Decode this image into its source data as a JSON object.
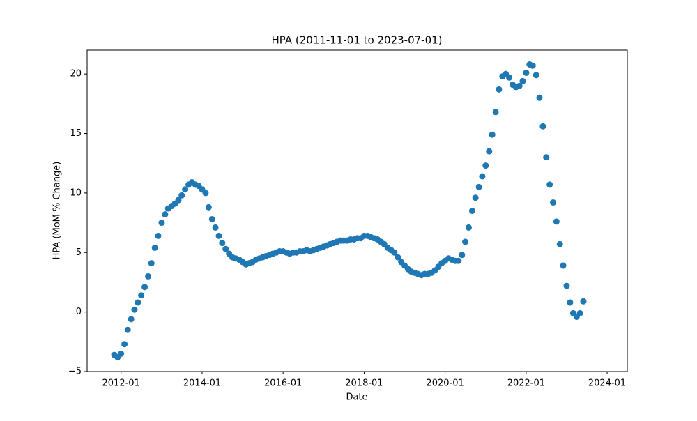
{
  "chart_data": {
    "type": "scatter",
    "title": "HPA (2011-11-01 to 2023-07-01)",
    "xlabel": "Date",
    "ylabel": "HPA (MoM % Change)",
    "color": "#1f77b4",
    "x": [
      "2011-11",
      "2011-12",
      "2012-01",
      "2012-02",
      "2012-03",
      "2012-04",
      "2012-05",
      "2012-06",
      "2012-07",
      "2012-08",
      "2012-09",
      "2012-10",
      "2012-11",
      "2012-12",
      "2013-01",
      "2013-02",
      "2013-03",
      "2013-04",
      "2013-05",
      "2013-06",
      "2013-07",
      "2013-08",
      "2013-09",
      "2013-10",
      "2013-11",
      "2013-12",
      "2014-01",
      "2014-02",
      "2014-03",
      "2014-04",
      "2014-05",
      "2014-06",
      "2014-07",
      "2014-08",
      "2014-09",
      "2014-10",
      "2014-11",
      "2014-12",
      "2015-01",
      "2015-02",
      "2015-03",
      "2015-04",
      "2015-05",
      "2015-06",
      "2015-07",
      "2015-08",
      "2015-09",
      "2015-10",
      "2015-11",
      "2015-12",
      "2016-01",
      "2016-02",
      "2016-03",
      "2016-04",
      "2016-05",
      "2016-06",
      "2016-07",
      "2016-08",
      "2016-09",
      "2016-10",
      "2016-11",
      "2016-12",
      "2017-01",
      "2017-02",
      "2017-03",
      "2017-04",
      "2017-05",
      "2017-06",
      "2017-07",
      "2017-08",
      "2017-09",
      "2017-10",
      "2017-11",
      "2017-12",
      "2018-01",
      "2018-02",
      "2018-03",
      "2018-04",
      "2018-05",
      "2018-06",
      "2018-07",
      "2018-08",
      "2018-09",
      "2018-10",
      "2018-11",
      "2018-12",
      "2019-01",
      "2019-02",
      "2019-03",
      "2019-04",
      "2019-05",
      "2019-06",
      "2019-07",
      "2019-08",
      "2019-09",
      "2019-10",
      "2019-11",
      "2019-12",
      "2020-01",
      "2020-02",
      "2020-03",
      "2020-04",
      "2020-05",
      "2020-06",
      "2020-07",
      "2020-08",
      "2020-09",
      "2020-10",
      "2020-11",
      "2020-12",
      "2021-01",
      "2021-02",
      "2021-03",
      "2021-04",
      "2021-05",
      "2021-06",
      "2021-07",
      "2021-08",
      "2021-09",
      "2021-10",
      "2021-11",
      "2021-12",
      "2022-01",
      "2022-02",
      "2022-03",
      "2022-04",
      "2022-05",
      "2022-06",
      "2022-07",
      "2022-08",
      "2022-09",
      "2022-10",
      "2022-11",
      "2022-12",
      "2023-01",
      "2023-02",
      "2023-03",
      "2023-04",
      "2023-05",
      "2023-06"
    ],
    "values": [
      -3.6,
      -3.8,
      -3.5,
      -2.7,
      -1.5,
      -0.6,
      0.2,
      0.8,
      1.4,
      2.1,
      3.0,
      4.1,
      5.4,
      6.4,
      7.5,
      8.2,
      8.7,
      8.9,
      9.1,
      9.4,
      9.8,
      10.3,
      10.7,
      10.9,
      10.7,
      10.6,
      10.3,
      10.0,
      8.8,
      7.8,
      7.1,
      6.4,
      5.8,
      5.3,
      4.9,
      4.6,
      4.5,
      4.4,
      4.2,
      4.0,
      4.1,
      4.2,
      4.4,
      4.5,
      4.6,
      4.7,
      4.8,
      4.9,
      5.0,
      5.1,
      5.1,
      5.0,
      4.9,
      5.0,
      5.0,
      5.1,
      5.1,
      5.2,
      5.1,
      5.2,
      5.3,
      5.4,
      5.5,
      5.6,
      5.7,
      5.8,
      5.9,
      6.0,
      6.0,
      6.0,
      6.1,
      6.1,
      6.2,
      6.2,
      6.4,
      6.4,
      6.3,
      6.2,
      6.1,
      5.9,
      5.7,
      5.4,
      5.2,
      5.0,
      4.6,
      4.2,
      3.9,
      3.6,
      3.4,
      3.3,
      3.2,
      3.1,
      3.2,
      3.2,
      3.3,
      3.5,
      3.8,
      4.1,
      4.3,
      4.5,
      4.4,
      4.3,
      4.3,
      4.8,
      5.9,
      7.1,
      8.5,
      9.6,
      10.5,
      11.4,
      12.3,
      13.5,
      14.9,
      16.8,
      18.7,
      19.8,
      20.0,
      19.7,
      19.1,
      18.9,
      19.0,
      19.4,
      20.1,
      20.8,
      20.7,
      19.9,
      18.0,
      15.6,
      13.0,
      10.7,
      9.2,
      7.6,
      5.7,
      3.9,
      2.2,
      0.8,
      -0.1,
      -0.4,
      -0.1,
      0.9
    ],
    "xlim": [
      "2011-03",
      "2024-07"
    ],
    "xticks": [
      "2012-01",
      "2014-01",
      "2016-01",
      "2018-01",
      "2020-01",
      "2022-01",
      "2024-01"
    ],
    "ylim": [
      -5,
      22
    ],
    "yticks": [
      {
        "value": -5,
        "label": "−5"
      },
      0,
      5,
      10,
      15,
      20
    ]
  }
}
